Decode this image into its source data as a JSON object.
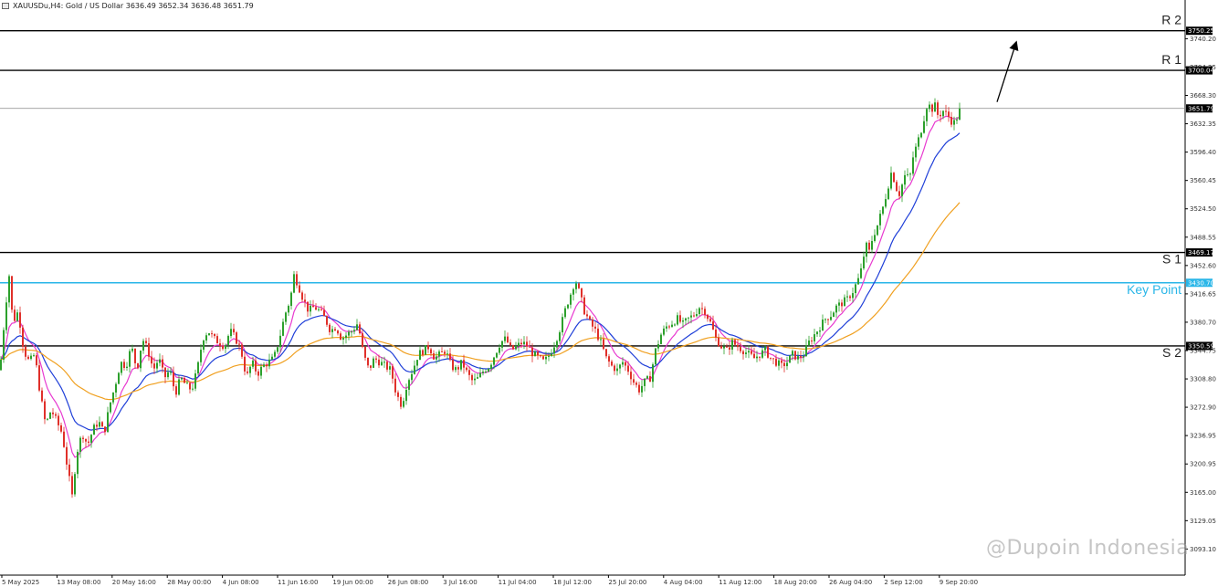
{
  "header": {
    "symbol_line": "XAUUSDu,H4:  Gold / US Dollar  3636.49 3652.34 3636.48 3651.79",
    "icon": "window-icon"
  },
  "watermark": "@Dupoin Indonesia",
  "colors": {
    "bull": "#2ca02c",
    "bear": "#e0302a",
    "ma_fast": "#e83ad0",
    "ma_mid": "#1f3fd8",
    "ma_slow": "#f0a020",
    "key_level": "#29b6e8",
    "level": "#000000",
    "current_price": "#888888",
    "arrow": "#000000"
  },
  "chart_data": {
    "type": "candlestick",
    "title": "XAUUSDu,H4: Gold / US Dollar",
    "ohlc_readout": {
      "open": 3636.49,
      "high": 3652.34,
      "low": 3636.48,
      "close": 3651.79
    },
    "ylim": [
      3060,
      3780
    ],
    "y_ticks": [
      "3740.20",
      "3704.25",
      "3668.30",
      "3632.35",
      "3596.40",
      "3560.45",
      "3524.50",
      "3488.55",
      "3452.60",
      "3416.65",
      "3380.70",
      "3344.75",
      "3308.80",
      "3272.90",
      "3236.95",
      "3200.95",
      "3165.00",
      "3129.05",
      "3093.10"
    ],
    "x_labels": [
      "5 May 2025",
      "13 May 08:00",
      "20 May 16:00",
      "28 May 00:00",
      "4 Jun 08:00",
      "11 Jun 16:00",
      "19 Jun 00:00",
      "26 Jun 08:00",
      "3 Jul 16:00",
      "11 Jul 04:00",
      "18 Jul 12:00",
      "25 Jul 20:00",
      "4 Aug 04:00",
      "11 Aug 12:00",
      "18 Aug 20:00",
      "26 Aug 04:00",
      "2 Sep 12:00",
      "9 Sep 20:00"
    ],
    "levels": [
      {
        "name": "R 2",
        "price": 3750.25,
        "label": "3750.25",
        "style": "resistance"
      },
      {
        "name": "R 1",
        "price": 3700.04,
        "label": "3700.04",
        "style": "resistance"
      },
      {
        "name": "",
        "price": 3651.79,
        "label": "3651.79",
        "style": "current"
      },
      {
        "name": "S 1",
        "price": 3469.17,
        "label": "3469.17",
        "style": "support"
      },
      {
        "name": "Key Point",
        "price": 3430.7,
        "label": "3430.70",
        "style": "key"
      },
      {
        "name": "S 2",
        "price": 3350.59,
        "label": "3350.59",
        "style": "support"
      }
    ],
    "path": [
      [
        0,
        3320
      ],
      [
        6,
        3400
      ],
      [
        10,
        3440
      ],
      [
        14,
        3380
      ],
      [
        20,
        3395
      ],
      [
        26,
        3345
      ],
      [
        32,
        3330
      ],
      [
        38,
        3340
      ],
      [
        44,
        3290
      ],
      [
        50,
        3250
      ],
      [
        56,
        3270
      ],
      [
        62,
        3255
      ],
      [
        68,
        3240
      ],
      [
        74,
        3195
      ],
      [
        79,
        3160
      ],
      [
        84,
        3215
      ],
      [
        90,
        3240
      ],
      [
        96,
        3225
      ],
      [
        102,
        3245
      ],
      [
        108,
        3255
      ],
      [
        114,
        3240
      ],
      [
        120,
        3275
      ],
      [
        126,
        3300
      ],
      [
        132,
        3330
      ],
      [
        138,
        3325
      ],
      [
        144,
        3350
      ],
      [
        150,
        3320
      ],
      [
        156,
        3360
      ],
      [
        162,
        3345
      ],
      [
        168,
        3320
      ],
      [
        174,
        3335
      ],
      [
        180,
        3310
      ],
      [
        186,
        3320
      ],
      [
        192,
        3290
      ],
      [
        198,
        3310
      ],
      [
        204,
        3300
      ],
      [
        210,
        3295
      ],
      [
        216,
        3320
      ],
      [
        222,
        3360
      ],
      [
        228,
        3370
      ],
      [
        234,
        3360
      ],
      [
        240,
        3355
      ],
      [
        246,
        3350
      ],
      [
        252,
        3370
      ],
      [
        258,
        3360
      ],
      [
        264,
        3345
      ],
      [
        270,
        3310
      ],
      [
        276,
        3330
      ],
      [
        282,
        3315
      ],
      [
        288,
        3325
      ],
      [
        294,
        3330
      ],
      [
        300,
        3335
      ],
      [
        306,
        3360
      ],
      [
        312,
        3390
      ],
      [
        318,
        3410
      ],
      [
        322,
        3440
      ],
      [
        326,
        3430
      ],
      [
        332,
        3410
      ],
      [
        338,
        3395
      ],
      [
        344,
        3400
      ],
      [
        350,
        3395
      ],
      [
        356,
        3385
      ],
      [
        362,
        3370
      ],
      [
        368,
        3375
      ],
      [
        374,
        3360
      ],
      [
        380,
        3365
      ],
      [
        386,
        3370
      ],
      [
        392,
        3380
      ],
      [
        398,
        3340
      ],
      [
        404,
        3320
      ],
      [
        410,
        3335
      ],
      [
        416,
        3330
      ],
      [
        422,
        3325
      ],
      [
        428,
        3320
      ],
      [
        434,
        3290
      ],
      [
        440,
        3275
      ],
      [
        446,
        3305
      ],
      [
        452,
        3320
      ],
      [
        458,
        3340
      ],
      [
        464,
        3345
      ],
      [
        470,
        3350
      ],
      [
        476,
        3335
      ],
      [
        482,
        3340
      ],
      [
        488,
        3345
      ],
      [
        494,
        3325
      ],
      [
        500,
        3320
      ],
      [
        506,
        3330
      ],
      [
        512,
        3315
      ],
      [
        518,
        3305
      ],
      [
        524,
        3310
      ],
      [
        530,
        3320
      ],
      [
        536,
        3325
      ],
      [
        542,
        3340
      ],
      [
        548,
        3355
      ],
      [
        554,
        3360
      ],
      [
        560,
        3345
      ],
      [
        566,
        3350
      ],
      [
        572,
        3355
      ],
      [
        578,
        3350
      ],
      [
        584,
        3340
      ],
      [
        590,
        3335
      ],
      [
        596,
        3330
      ],
      [
        602,
        3340
      ],
      [
        608,
        3355
      ],
      [
        614,
        3375
      ],
      [
        620,
        3400
      ],
      [
        626,
        3420
      ],
      [
        630,
        3435
      ],
      [
        634,
        3420
      ],
      [
        640,
        3395
      ],
      [
        646,
        3380
      ],
      [
        652,
        3370
      ],
      [
        658,
        3355
      ],
      [
        664,
        3335
      ],
      [
        670,
        3325
      ],
      [
        676,
        3320
      ],
      [
        682,
        3330
      ],
      [
        688,
        3320
      ],
      [
        694,
        3305
      ],
      [
        700,
        3295
      ],
      [
        706,
        3305
      ],
      [
        712,
        3310
      ],
      [
        718,
        3345
      ],
      [
        724,
        3365
      ],
      [
        730,
        3375
      ],
      [
        736,
        3380
      ],
      [
        742,
        3385
      ],
      [
        748,
        3378
      ],
      [
        754,
        3385
      ],
      [
        760,
        3390
      ],
      [
        766,
        3400
      ],
      [
        772,
        3395
      ],
      [
        778,
        3380
      ],
      [
        784,
        3360
      ],
      [
        790,
        3350
      ],
      [
        796,
        3345
      ],
      [
        802,
        3355
      ],
      [
        808,
        3350
      ],
      [
        814,
        3345
      ],
      [
        820,
        3340
      ],
      [
        826,
        3335
      ],
      [
        832,
        3340
      ],
      [
        838,
        3345
      ],
      [
        844,
        3335
      ],
      [
        850,
        3330
      ],
      [
        856,
        3325
      ],
      [
        862,
        3330
      ],
      [
        868,
        3340
      ],
      [
        874,
        3335
      ],
      [
        880,
        3340
      ],
      [
        886,
        3355
      ],
      [
        892,
        3365
      ],
      [
        898,
        3375
      ],
      [
        904,
        3385
      ],
      [
        910,
        3390
      ],
      [
        916,
        3400
      ],
      [
        922,
        3405
      ],
      [
        928,
        3410
      ],
      [
        934,
        3420
      ],
      [
        940,
        3435
      ],
      [
        944,
        3450
      ],
      [
        948,
        3480
      ],
      [
        952,
        3470
      ],
      [
        956,
        3490
      ],
      [
        960,
        3500
      ],
      [
        964,
        3515
      ],
      [
        968,
        3530
      ],
      [
        972,
        3550
      ],
      [
        976,
        3570
      ],
      [
        980,
        3560
      ],
      [
        984,
        3540
      ],
      [
        988,
        3555
      ],
      [
        992,
        3570
      ],
      [
        996,
        3560
      ],
      [
        1000,
        3590
      ],
      [
        1004,
        3605
      ],
      [
        1008,
        3620
      ],
      [
        1012,
        3640
      ],
      [
        1016,
        3660
      ],
      [
        1020,
        3650
      ],
      [
        1024,
        3655
      ],
      [
        1028,
        3640
      ],
      [
        1032,
        3650
      ],
      [
        1036,
        3645
      ],
      [
        1040,
        3640
      ],
      [
        1044,
        3632
      ],
      [
        1048,
        3640
      ],
      [
        1052,
        3651.79
      ]
    ],
    "trend_arrow": {
      "from_price": 3660,
      "to_price": 3732
    }
  }
}
